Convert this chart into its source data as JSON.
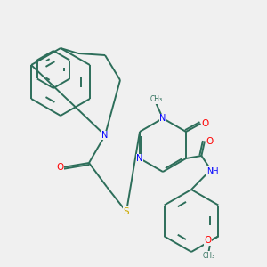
{
  "bg_color": "#f0f0f0",
  "C_color": "#2d6e5a",
  "N_color": "#0000ff",
  "O_color": "#ff0000",
  "S_color": "#ccaa00",
  "bond_color": "#2d6e5a",
  "bond_lw": 1.4,
  "figsize": [
    3.0,
    3.0
  ],
  "dpi": 100,
  "xlim": [
    0,
    10
  ],
  "ylim": [
    0,
    10
  ]
}
